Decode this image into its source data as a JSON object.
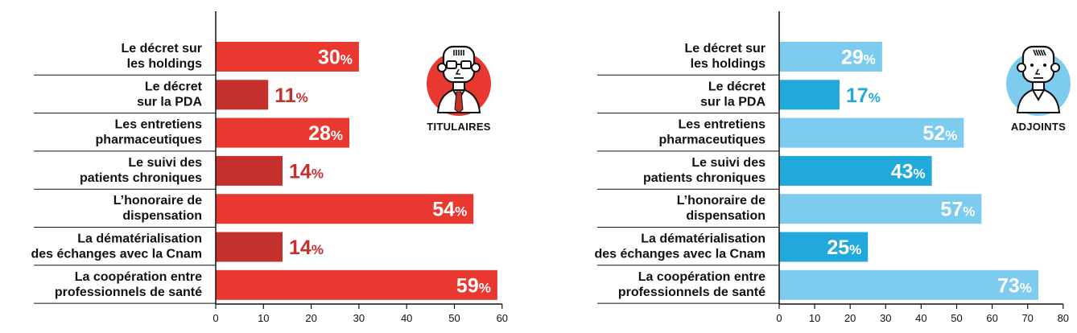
{
  "chart_data": [
    {
      "type": "bar",
      "orientation": "horizontal",
      "badge": "TITULAIRES",
      "categories": [
        [
          "Le décret sur",
          "les holdings"
        ],
        [
          "Le décret",
          "sur la PDA"
        ],
        [
          "Les entretiens",
          "pharmaceutiques"
        ],
        [
          "Le suivi des",
          "patients chroniques"
        ],
        [
          "L’honoraire de",
          "dispensation"
        ],
        [
          "La dématérialisation",
          "des échanges avec la Cnam"
        ],
        [
          "La coopération entre",
          "professionnels de santé"
        ]
      ],
      "values": [
        30,
        11,
        28,
        14,
        54,
        14,
        59
      ],
      "value_suffix": "%",
      "xlim": [
        0,
        60
      ],
      "xticks": [
        0,
        10,
        20,
        30,
        40,
        50,
        60
      ],
      "colors": {
        "light": "#e8382f",
        "dark": "#c4302b",
        "label_outside": "#c4302b",
        "label_inside": "#ffffff"
      }
    },
    {
      "type": "bar",
      "orientation": "horizontal",
      "badge": "ADJOINTS",
      "categories": [
        [
          "Le décret sur",
          "les holdings"
        ],
        [
          "Le décret",
          "sur la PDA"
        ],
        [
          "Les entretiens",
          "pharmaceutiques"
        ],
        [
          "Le suivi des",
          "patients chroniques"
        ],
        [
          "L’honoraire de",
          "dispensation"
        ],
        [
          "La dématérialisation",
          "des échanges avec la Cnam"
        ],
        [
          "La coopération entre",
          "professionnels de santé"
        ]
      ],
      "values": [
        29,
        17,
        52,
        43,
        57,
        25,
        73
      ],
      "value_suffix": "%",
      "xlim": [
        0,
        80
      ],
      "xticks": [
        0,
        10,
        20,
        30,
        40,
        50,
        60,
        70,
        80
      ],
      "colors": {
        "light": "#7dcbef",
        "dark": "#22a9dc",
        "label_outside": "#22a9dc",
        "label_inside": "#ffffff"
      }
    }
  ]
}
